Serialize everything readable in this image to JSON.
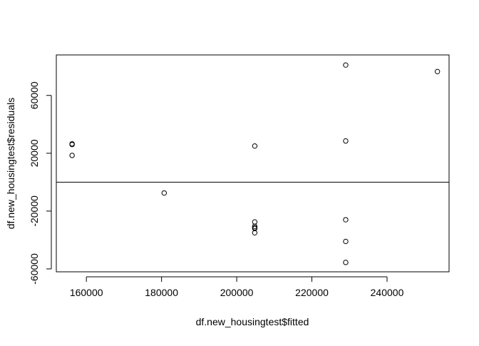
{
  "chart_data": {
    "type": "scatter",
    "title": "",
    "xlabel": "df.new_housingtest$fitted",
    "ylabel": "df.new_housingtest$residuals",
    "xlim": [
      152000,
      256500
    ],
    "ylim": [
      -62000,
      88000
    ],
    "xticks": [
      160000,
      180000,
      200000,
      220000,
      240000
    ],
    "xtick_labels": [
      "160000",
      "180000",
      "200000",
      "220000",
      "240000"
    ],
    "yticks": [
      -60000,
      -20000,
      20000,
      60000
    ],
    "ytick_labels": [
      "-60000",
      "-20000",
      "20000",
      "60000"
    ],
    "grid": false,
    "legend": "none",
    "reference_line": {
      "y": 0
    },
    "point_style": "open-circle",
    "points": [
      {
        "x": 156200,
        "y": 26500
      },
      {
        "x": 156200,
        "y": 26000
      },
      {
        "x": 156200,
        "y": 18500
      },
      {
        "x": 180700,
        "y": -7500
      },
      {
        "x": 204800,
        "y": 25000
      },
      {
        "x": 204800,
        "y": -27500
      },
      {
        "x": 204800,
        "y": -30500
      },
      {
        "x": 204800,
        "y": -31500
      },
      {
        "x": 204800,
        "y": -32000
      },
      {
        "x": 204800,
        "y": -35000
      },
      {
        "x": 229000,
        "y": 81000
      },
      {
        "x": 229000,
        "y": 28500
      },
      {
        "x": 229000,
        "y": -26000
      },
      {
        "x": 229000,
        "y": -41000
      },
      {
        "x": 229000,
        "y": -55500
      },
      {
        "x": 253400,
        "y": 76500
      }
    ],
    "colors": {
      "axis": "#000000",
      "points": "#000000",
      "background": "#ffffff"
    }
  }
}
